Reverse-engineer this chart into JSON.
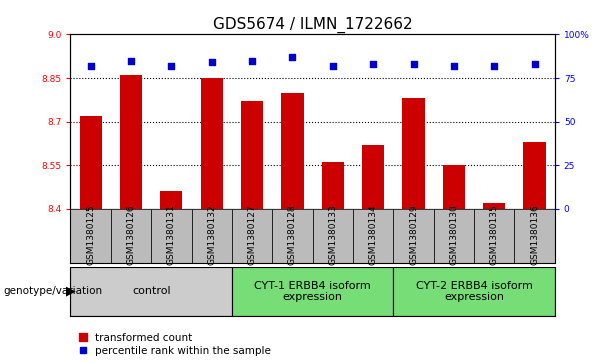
{
  "title": "GDS5674 / ILMN_1722662",
  "samples": [
    "GSM1380125",
    "GSM1380126",
    "GSM1380131",
    "GSM1380132",
    "GSM1380127",
    "GSM1380128",
    "GSM1380133",
    "GSM1380134",
    "GSM1380129",
    "GSM1380130",
    "GSM1380135",
    "GSM1380136"
  ],
  "transformed_counts": [
    8.72,
    8.86,
    8.46,
    8.85,
    8.77,
    8.8,
    8.56,
    8.62,
    8.78,
    8.55,
    8.42,
    8.63
  ],
  "percentile_ranks": [
    82,
    85,
    82,
    84,
    85,
    87,
    82,
    83,
    83,
    82,
    82,
    83
  ],
  "ylim_left": [
    8.4,
    9.0
  ],
  "ylim_right": [
    0,
    100
  ],
  "yticks_left": [
    8.4,
    8.55,
    8.7,
    8.85,
    9.0
  ],
  "yticks_right": [
    0,
    25,
    50,
    75,
    100
  ],
  "ytick_labels_right": [
    "0",
    "25",
    "50",
    "75",
    "100%"
  ],
  "hlines": [
    8.55,
    8.7,
    8.85
  ],
  "bar_color": "#cc0000",
  "dot_color": "#0000cc",
  "bar_bottom": 8.4,
  "groups": [
    {
      "label": "control",
      "start": 0,
      "end": 4,
      "color": "#cccccc"
    },
    {
      "label": "CYT-1 ERBB4 isoform\nexpression",
      "start": 4,
      "end": 8,
      "color": "#77dd77"
    },
    {
      "label": "CYT-2 ERBB4 isoform\nexpression",
      "start": 8,
      "end": 12,
      "color": "#77dd77"
    }
  ],
  "xlabel_groups_label": "genotype/variation",
  "legend_bar_label": "transformed count",
  "legend_dot_label": "percentile rank within the sample",
  "tick_area_color": "#bbbbbb",
  "spine_color": "#000000",
  "title_fontsize": 11,
  "tick_label_fontsize": 6.5,
  "group_label_fontsize": 8,
  "axis_label_fontsize": 8
}
